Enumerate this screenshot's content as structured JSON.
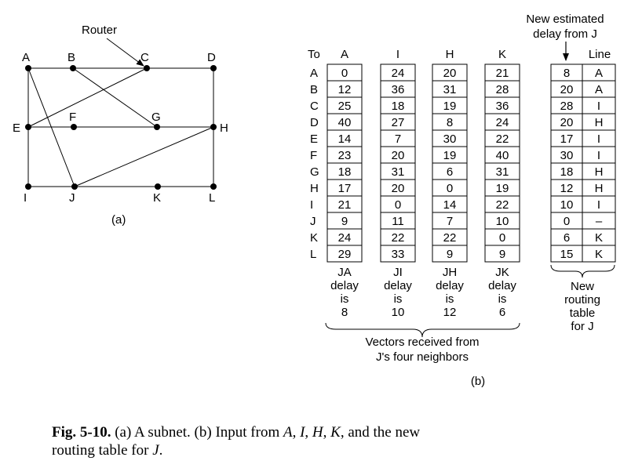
{
  "subnet": {
    "router_label": "Router",
    "caption": "(a)",
    "nodes": [
      {
        "id": "A",
        "label": "A"
      },
      {
        "id": "B",
        "label": "B"
      },
      {
        "id": "C",
        "label": "C"
      },
      {
        "id": "D",
        "label": "D"
      },
      {
        "id": "E",
        "label": "E"
      },
      {
        "id": "F",
        "label": "F"
      },
      {
        "id": "G",
        "label": "G"
      },
      {
        "id": "H",
        "label": "H"
      },
      {
        "id": "I",
        "label": "I"
      },
      {
        "id": "J",
        "label": "J"
      },
      {
        "id": "K",
        "label": "K"
      },
      {
        "id": "L",
        "label": "L"
      }
    ],
    "edges": [
      [
        "A",
        "B"
      ],
      [
        "B",
        "C"
      ],
      [
        "C",
        "D"
      ],
      [
        "A",
        "E"
      ],
      [
        "A",
        "J"
      ],
      [
        "E",
        "C"
      ],
      [
        "B",
        "G"
      ],
      [
        "E",
        "F"
      ],
      [
        "F",
        "G"
      ],
      [
        "G",
        "H"
      ],
      [
        "D",
        "H"
      ],
      [
        "E",
        "I"
      ],
      [
        "J",
        "H"
      ],
      [
        "H",
        "L"
      ],
      [
        "I",
        "J"
      ],
      [
        "J",
        "K"
      ],
      [
        "K",
        "L"
      ]
    ]
  },
  "table": {
    "to_label": "To",
    "destinations": [
      "A",
      "B",
      "C",
      "D",
      "E",
      "F",
      "G",
      "H",
      "I",
      "J",
      "K",
      "L"
    ],
    "neighbors": [
      {
        "header": "A",
        "values": [
          "0",
          "12",
          "25",
          "40",
          "14",
          "23",
          "18",
          "17",
          "21",
          "9",
          "24",
          "29"
        ],
        "footer": [
          "JA",
          "delay",
          "is",
          "8"
        ]
      },
      {
        "header": "I",
        "values": [
          "24",
          "36",
          "18",
          "27",
          "7",
          "20",
          "31",
          "20",
          "0",
          "11",
          "22",
          "33"
        ],
        "footer": [
          "JI",
          "delay",
          "is",
          "10"
        ]
      },
      {
        "header": "H",
        "values": [
          "20",
          "31",
          "19",
          "8",
          "30",
          "19",
          "6",
          "0",
          "14",
          "7",
          "22",
          "9"
        ],
        "footer": [
          "JH",
          "delay",
          "is",
          "12"
        ]
      },
      {
        "header": "K",
        "values": [
          "21",
          "28",
          "36",
          "24",
          "22",
          "40",
          "31",
          "19",
          "22",
          "10",
          "0",
          "9"
        ],
        "footer": [
          "JK",
          "delay",
          "is",
          "6"
        ]
      }
    ],
    "new_table": {
      "header_line1": "New estimated",
      "header_line2": "delay from J",
      "line_header": "Line",
      "delays": [
        "8",
        "20",
        "28",
        "20",
        "17",
        "30",
        "18",
        "12",
        "10",
        "0",
        "6",
        "15"
      ],
      "lines": [
        "A",
        "A",
        "I",
        "H",
        "I",
        "I",
        "H",
        "H",
        "I",
        "–",
        "K",
        "K"
      ],
      "label": [
        "New",
        "routing",
        "table",
        "for J"
      ]
    },
    "vectors_label_line1": "Vectors received from",
    "vectors_label_line2": "J's four neighbors",
    "caption": "(b)"
  },
  "figure_caption": {
    "fig_label": "Fig.  5-10.",
    "segments": [
      {
        "text": " (a) A subnet.  (b) Input from ",
        "italic": false
      },
      {
        "text": "A",
        "italic": true
      },
      {
        "text": ", ",
        "italic": false
      },
      {
        "text": "I",
        "italic": true
      },
      {
        "text": ", ",
        "italic": false
      },
      {
        "text": "H",
        "italic": true
      },
      {
        "text": ", ",
        "italic": false
      },
      {
        "text": "K",
        "italic": true
      },
      {
        "text": ", and the new",
        "italic": false
      }
    ],
    "line2_prefix": "routing table for ",
    "line2_italic": "J",
    "line2_suffix": "."
  }
}
